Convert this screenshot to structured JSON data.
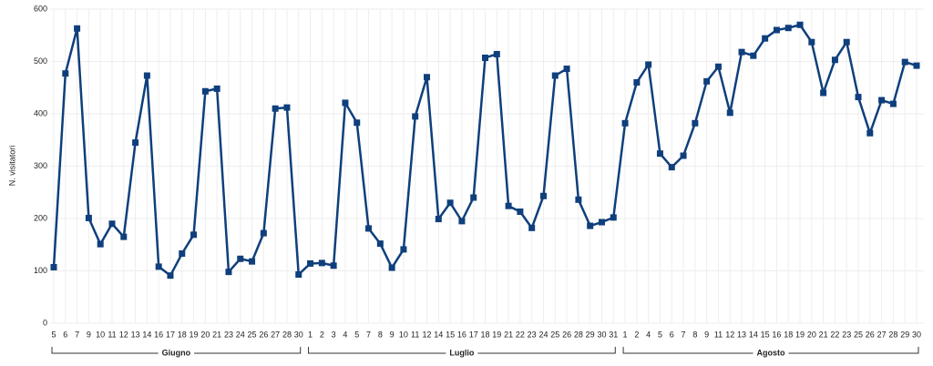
{
  "chart_data": {
    "type": "line",
    "y_label": "N. visitatori",
    "color": "#0f3f7c",
    "grid": true,
    "ylim": [
      0,
      600
    ],
    "yticks": [
      0,
      100,
      200,
      300,
      400,
      500,
      600
    ],
    "groups": [
      {
        "name": "Giugno",
        "categories": [
          "5",
          "6",
          "7",
          "9",
          "10",
          "11",
          "12",
          "13",
          "14",
          "16",
          "17",
          "18",
          "19",
          "20",
          "21",
          "23",
          "24",
          "25",
          "26",
          "27",
          "28",
          "30"
        ],
        "values": [
          107,
          477,
          563,
          201,
          151,
          190,
          165,
          345,
          473,
          108,
          91,
          133,
          169,
          443,
          448,
          98,
          123,
          118,
          172,
          410,
          412,
          93
        ]
      },
      {
        "name": "Luglio",
        "categories": [
          "1",
          "2",
          "3",
          "4",
          "5",
          "7",
          "8",
          "9",
          "10",
          "11",
          "12",
          "14",
          "15",
          "16",
          "17",
          "18",
          "19",
          "21",
          "22",
          "23",
          "24",
          "25",
          "26",
          "28",
          "29",
          "30",
          "31"
        ],
        "values": [
          114,
          115,
          110,
          421,
          383,
          181,
          152,
          106,
          141,
          395,
          470,
          199,
          230,
          195,
          240,
          507,
          514,
          224,
          213,
          182,
          243,
          473,
          486,
          236,
          186,
          193,
          202
        ]
      },
      {
        "name": "Agosto",
        "categories": [
          "1",
          "2",
          "4",
          "5",
          "6",
          "7",
          "8",
          "9",
          "11",
          "12",
          "13",
          "14",
          "15",
          "16",
          "18",
          "19",
          "20",
          "21",
          "22",
          "23",
          "25",
          "26",
          "27",
          "28",
          "29",
          "30"
        ],
        "values": [
          382,
          460,
          494,
          324,
          298,
          320,
          382,
          462,
          490,
          402,
          518,
          511,
          544,
          560,
          564,
          570,
          537,
          440,
          503,
          537,
          432,
          363,
          426,
          419,
          499,
          492
        ]
      }
    ]
  }
}
